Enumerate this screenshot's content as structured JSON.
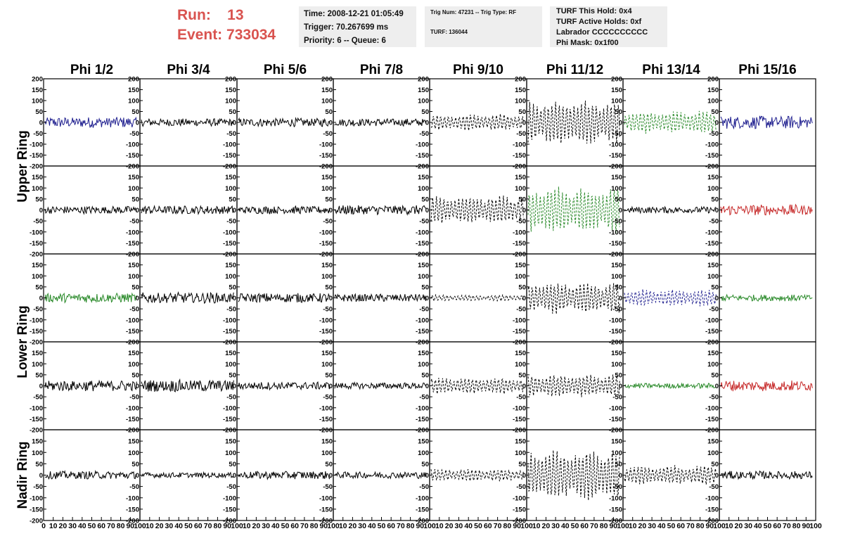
{
  "header": {
    "run_label": "Run:",
    "run_value": "13",
    "event_label": "Event:",
    "event_value": "733034",
    "time": "Time: 2008-12-21 01:05:49",
    "trigger": "Trigger: 70.267699 ms",
    "priority": "Priority: 6 -- Queue: 6",
    "trig_num": "Trig Num: 47231 -- Trig Type: RF",
    "turf": "TURF: 136044",
    "turf_hold": "TURF This Hold: 0x4",
    "turf_active": "TURF Active Holds: 0xf",
    "labrador": "Labrador CCCCCCCCCC",
    "phi_mask": "Phi Mask: 0x1f00",
    "accent_color": "#d9534f",
    "box_color": "#eeeeee"
  },
  "chart_data": {
    "type": "line",
    "columns": [
      "Phi 1/2",
      "Phi 3/4",
      "Phi 5/6",
      "Phi 7/8",
      "Phi 9/10",
      "Phi 11/12",
      "Phi 13/14",
      "Phi 15/16"
    ],
    "ring_labels": [
      {
        "label": "Upper Ring",
        "rows": [
          0,
          1
        ]
      },
      {
        "label": "Lower Ring",
        "rows": [
          2,
          3
        ]
      },
      {
        "label": "Nadir Ring",
        "rows": [
          4
        ]
      }
    ],
    "ylim": [
      -200,
      200
    ],
    "yticks_top": [
      200,
      150,
      100,
      50,
      0,
      -50,
      -100,
      -150,
      -200
    ],
    "yticks_bottom": [
      200,
      150,
      100,
      50,
      0,
      -50,
      -100,
      -150,
      -200
    ],
    "xlim": [
      0,
      100
    ],
    "xticks": [
      0,
      10,
      20,
      30,
      40,
      50,
      60,
      70,
      80,
      90,
      100
    ],
    "colors": {
      "blue": "#1f1f8f",
      "green": "#2a8a2a",
      "red": "#c62828",
      "black": "#000000"
    },
    "panels": [
      [
        {
          "color": "blue",
          "style": "solid",
          "amplitude": 25
        },
        {
          "color": "black",
          "style": "solid",
          "amplitude": 18
        },
        {
          "color": "black",
          "style": "solid",
          "amplitude": 20
        },
        {
          "color": "black",
          "style": "solid",
          "amplitude": 18
        },
        {
          "color": "black",
          "style": "dashed",
          "amplitude": 40
        },
        {
          "color": "black",
          "style": "dashed",
          "amplitude": 110
        },
        {
          "color": "green",
          "style": "dashed",
          "amplitude": 55
        },
        {
          "color": "blue",
          "style": "solid",
          "amplitude": 30
        }
      ],
      [
        {
          "color": "black",
          "style": "solid",
          "amplitude": 18
        },
        {
          "color": "black",
          "style": "solid",
          "amplitude": 20
        },
        {
          "color": "black",
          "style": "solid",
          "amplitude": 18
        },
        {
          "color": "black",
          "style": "solid",
          "amplitude": 22
        },
        {
          "color": "black",
          "style": "dashed",
          "amplitude": 70
        },
        {
          "color": "green",
          "style": "dashed",
          "amplitude": 110
        },
        {
          "color": "black",
          "style": "solid",
          "amplitude": 15
        },
        {
          "color": "red",
          "style": "solid",
          "amplitude": 25
        }
      ],
      [
        {
          "color": "green",
          "style": "solid",
          "amplitude": 22
        },
        {
          "color": "black",
          "style": "solid",
          "amplitude": 25
        },
        {
          "color": "black",
          "style": "solid",
          "amplitude": 22
        },
        {
          "color": "black",
          "style": "solid",
          "amplitude": 18
        },
        {
          "color": "black",
          "style": "dashed",
          "amplitude": 15
        },
        {
          "color": "black",
          "style": "dashed",
          "amplitude": 75
        },
        {
          "color": "blue",
          "style": "dashed",
          "amplitude": 40
        },
        {
          "color": "green",
          "style": "solid",
          "amplitude": 15
        }
      ],
      [
        {
          "color": "black",
          "style": "solid",
          "amplitude": 25
        },
        {
          "color": "black",
          "style": "solid",
          "amplitude": 28
        },
        {
          "color": "black",
          "style": "solid",
          "amplitude": 18
        },
        {
          "color": "black",
          "style": "solid",
          "amplitude": 15
        },
        {
          "color": "black",
          "style": "dashed",
          "amplitude": 40
        },
        {
          "color": "black",
          "style": "dashed",
          "amplitude": 55
        },
        {
          "color": "green",
          "style": "solid",
          "amplitude": 12
        },
        {
          "color": "red",
          "style": "solid",
          "amplitude": 25
        }
      ],
      [
        {
          "color": "black",
          "style": "solid",
          "amplitude": 18
        },
        {
          "color": "black",
          "style": "solid",
          "amplitude": 12
        },
        {
          "color": "black",
          "style": "solid",
          "amplitude": 18
        },
        {
          "color": "black",
          "style": "solid",
          "amplitude": 15
        },
        {
          "color": "black",
          "style": "dashed",
          "amplitude": 30
        },
        {
          "color": "black",
          "style": "dashed",
          "amplitude": 120
        },
        {
          "color": "black",
          "style": "dashed",
          "amplitude": 45
        },
        {
          "color": "black",
          "style": "solid",
          "amplitude": 18
        }
      ]
    ]
  }
}
